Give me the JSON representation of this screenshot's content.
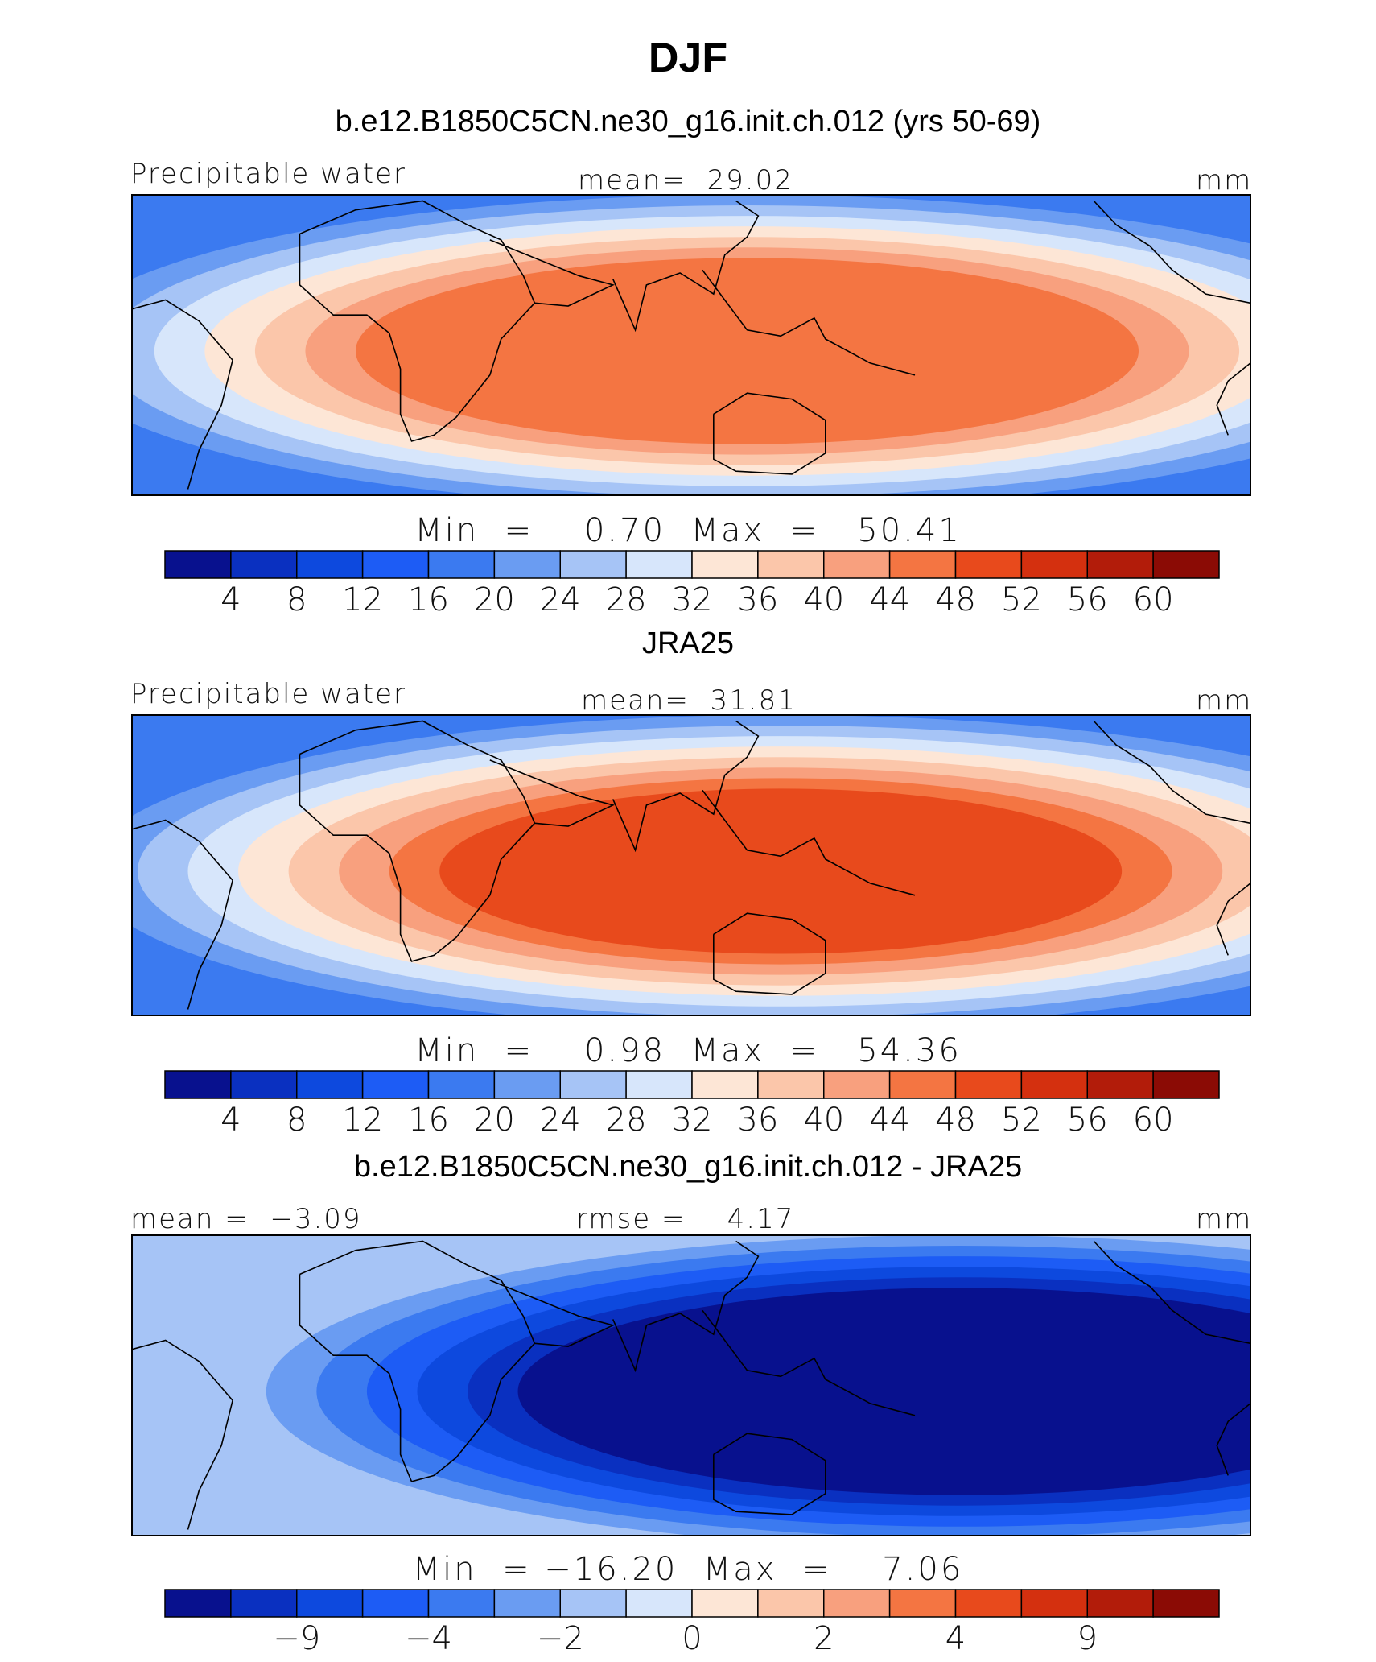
{
  "title": "DJF",
  "palette": [
    "#08118e",
    "#0a30c0",
    "#0d49de",
    "#1d5cf5",
    "#3b7af0",
    "#6a9cf2",
    "#a6c4f6",
    "#d7e6fb",
    "#fde6d6",
    "#fbc6aa",
    "#f8a07e",
    "#f47542",
    "#e84a1c",
    "#d4300f",
    "#b21c0a",
    "#8b0b05"
  ],
  "chart_data": [
    {
      "type": "heatmap",
      "title": "b.e12.B1850C5CN.ne30_g16.init.ch.012 (yrs 50-69)",
      "variable": "Precipitable water",
      "mean_label": "mean=  29.02",
      "units": "mm",
      "minmax_label": "Min  =    0.70  Max  =   50.41",
      "min": 0.7,
      "max": 50.41,
      "mean": 29.02,
      "colorbar_ticks": [
        "4",
        "8",
        "12",
        "16",
        "20",
        "24",
        "28",
        "32",
        "36",
        "40",
        "44",
        "48",
        "52",
        "56",
        "60"
      ],
      "colorbar_levels": [
        4,
        8,
        12,
        16,
        20,
        24,
        28,
        32,
        36,
        40,
        44,
        48,
        52,
        56,
        60
      ]
    },
    {
      "type": "heatmap",
      "title": "JRA25",
      "variable": "Precipitable water",
      "mean_label": "mean=  31.81",
      "units": "mm",
      "minmax_label": "Min  =    0.98  Max  =   54.36",
      "min": 0.98,
      "max": 54.36,
      "mean": 31.81,
      "colorbar_ticks": [
        "4",
        "8",
        "12",
        "16",
        "20",
        "24",
        "28",
        "32",
        "36",
        "40",
        "44",
        "48",
        "52",
        "56",
        "60"
      ],
      "colorbar_levels": [
        4,
        8,
        12,
        16,
        20,
        24,
        28,
        32,
        36,
        40,
        44,
        48,
        52,
        56,
        60
      ]
    },
    {
      "type": "heatmap",
      "title": "b.e12.B1850C5CN.ne30_g16.init.ch.012 - JRA25",
      "left_label": "mean =  −3.09",
      "mean_label": "rmse =    4.17",
      "units": "mm",
      "minmax_label": "Min  = −16.20  Max  =    7.06",
      "min": -16.2,
      "max": 7.06,
      "mean": -3.09,
      "rmse": 4.17,
      "colorbar_ticks": [
        "−9",
        "−4",
        "−2",
        "0",
        "2",
        "4",
        "9"
      ],
      "colorbar_levels": [
        -9,
        -4,
        -2,
        0,
        2,
        4,
        9
      ]
    }
  ]
}
